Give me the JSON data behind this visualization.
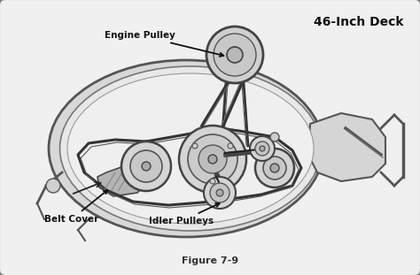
{
  "title": "46-Inch Deck",
  "caption": "Figure 7-9",
  "outer_bg": "#c8c8c8",
  "inner_bg": "#e8e8e8",
  "border_color": "#555555",
  "line_color": "#333333",
  "label_engine_pulley": "Engine Pulley",
  "label_belt_cover": "Belt Cover",
  "label_idler_pulleys": "Idler Pulleys",
  "title_fontsize": 10,
  "caption_fontsize": 8,
  "label_fontsize": 7.5,
  "fig_w": 4.74,
  "fig_h": 3.11,
  "dpi": 100
}
